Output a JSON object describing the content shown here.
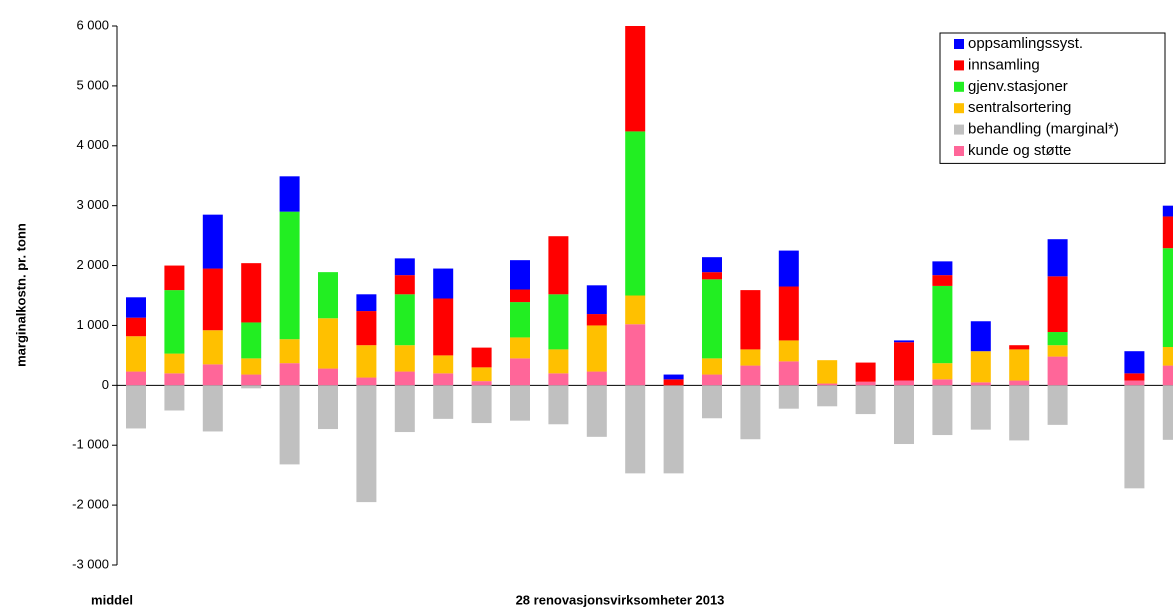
{
  "chart_data": {
    "type": "stacked_bar",
    "ylabel": "marginalkostn. pr. tonn",
    "xlabel": "28 renovasjonsvirksomheter 2013",
    "categories": [
      "middel",
      null,
      null,
      null,
      null,
      null,
      null,
      null,
      null,
      null,
      null,
      null,
      null,
      null,
      null,
      null,
      null,
      null,
      null,
      null,
      null,
      null,
      null,
      null,
      null,
      null,
      null,
      null
    ],
    "ylim": [
      -3000,
      6000
    ],
    "yticks": [
      {
        "value": -3000,
        "label": "-3 000"
      },
      {
        "value": -2000,
        "label": "-2 000"
      },
      {
        "value": -1000,
        "label": "-1 000"
      },
      0,
      {
        "value": 1000,
        "label": "1 000"
      },
      {
        "value": 2000,
        "label": "2 000"
      },
      {
        "value": 3000,
        "label": "3 000"
      },
      {
        "value": 4000,
        "label": "4 000"
      },
      {
        "value": 5000,
        "label": "5 000"
      },
      {
        "value": 6000,
        "label": "6 000"
      }
    ],
    "legend": "upper right",
    "series": [
      {
        "name": "kunde og støtte",
        "color": "#ff6699",
        "values": [
          230,
          200,
          350,
          180,
          370,
          280,
          130,
          230,
          200,
          70,
          450,
          200,
          230,
          1020,
          null,
          180,
          330,
          400,
          30,
          60,
          80,
          100,
          50,
          80,
          480,
          null,
          80,
          330
        ]
      },
      {
        "name": "behandling (marginal*)",
        "color": "#c0c0c0",
        "values": [
          -720,
          -420,
          -770,
          -50,
          -1320,
          -730,
          -1950,
          -780,
          -560,
          -630,
          -590,
          -650,
          -860,
          -1470,
          -1470,
          -550,
          -900,
          -390,
          -350,
          -480,
          -980,
          -830,
          -740,
          -920,
          -660,
          null,
          -1720,
          -910
        ]
      },
      {
        "name": "sentralsortering",
        "color": "#ffc000",
        "values": [
          590,
          330,
          570,
          270,
          400,
          840,
          540,
          440,
          300,
          230,
          350,
          400,
          770,
          480,
          null,
          270,
          270,
          350,
          390,
          null,
          null,
          270,
          520,
          520,
          190,
          null,
          null,
          310
        ]
      },
      {
        "name": "gjenv.stasjoner",
        "color": "#22ee22",
        "values": [
          null,
          1060,
          null,
          600,
          2130,
          770,
          null,
          850,
          null,
          null,
          590,
          920,
          null,
          2740,
          null,
          1320,
          null,
          null,
          null,
          null,
          null,
          1290,
          null,
          null,
          220,
          null,
          null,
          1650
        ]
      },
      {
        "name": "innsamling",
        "color": "#ff0000",
        "values": [
          310,
          410,
          1030,
          990,
          null,
          null,
          570,
          320,
          950,
          330,
          210,
          970,
          190,
          1760,
          100,
          120,
          990,
          900,
          null,
          320,
          640,
          180,
          null,
          70,
          930,
          null,
          120,
          530
        ]
      },
      {
        "name": "oppsamlingssyst.",
        "color": "#0000ff",
        "values": [
          340,
          null,
          900,
          null,
          590,
          null,
          280,
          280,
          500,
          null,
          490,
          null,
          480,
          null,
          80,
          250,
          null,
          600,
          null,
          null,
          30,
          230,
          500,
          null,
          620,
          null,
          370,
          180
        ]
      }
    ]
  }
}
